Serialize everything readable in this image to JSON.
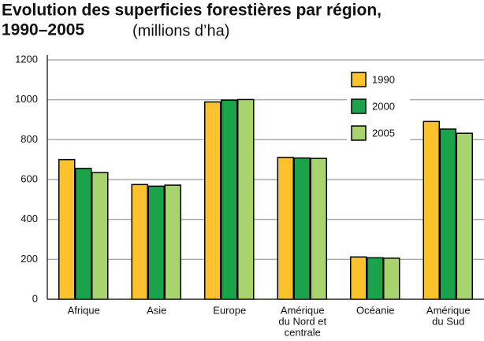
{
  "chart_data": {
    "type": "bar",
    "title": [
      "Evolution des superficies forestières par région,",
      "1990–2005"
    ],
    "subtitle": "(millions d’ha)",
    "categories": [
      [
        "Afrique"
      ],
      [
        "Asie"
      ],
      [
        "Europe"
      ],
      [
        "Amérique",
        "du Nord et",
        "centrale"
      ],
      [
        "Océanie"
      ],
      [
        "Amérique",
        "du Sud"
      ]
    ],
    "series": [
      {
        "name": "1990",
        "color": "#fcc22d",
        "values": [
          700,
          575,
          989,
          711,
          212,
          891
        ]
      },
      {
        "name": "2000",
        "color": "#1aa34a",
        "values": [
          656,
          567,
          998,
          708,
          208,
          853
        ]
      },
      {
        "name": "2005",
        "color": "#a8d46f",
        "values": [
          635,
          572,
          1001,
          706,
          206,
          832
        ]
      }
    ],
    "ylim": [
      0,
      1200
    ],
    "yticks": [
      0,
      200,
      400,
      600,
      800,
      1000,
      1200
    ],
    "grid": true,
    "legend": "top-right"
  }
}
